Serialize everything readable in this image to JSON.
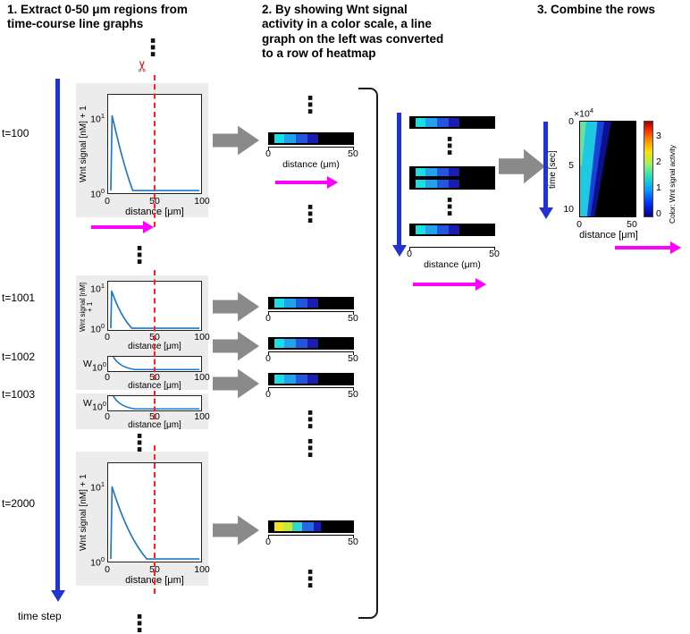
{
  "headings": {
    "step1": "1. Extract 0-50 μm regions from\ntime-course line graphs",
    "step2": "2. By showing Wnt signal\nactivity in a color scale, a line\ngraph on the left was converted\nto a row of heatmap",
    "step3": "3. Combine the rows"
  },
  "colors": {
    "time_arrow": "#2433d0",
    "dist_arrow": "#ff00ff",
    "flow_arrow": "#8a8a8a",
    "cut_line": "#ff2020",
    "curve": "#1f77c8",
    "panel_bg": "#ececec"
  },
  "misc": {
    "dots": "⋮",
    "scissors": "✂"
  },
  "col1": {
    "time_labels": [
      "t=100",
      "t=1001",
      "t=1002",
      "t=1003",
      "t=2000"
    ],
    "time_axis_label": "time step",
    "graph": {
      "ylabel": "Wnt signal [nM] + 1",
      "xlabel": "distance [μm]",
      "ytick_top": {
        "base": "10",
        "exp": "1"
      },
      "ytick_bottom": {
        "base": "10",
        "exp": "0"
      },
      "xticks": [
        "0",
        "50",
        "100"
      ],
      "cropped_ylabel": "W"
    }
  },
  "col2": {
    "axis": {
      "zero": "0",
      "fifty": "50",
      "label": "distance (μm)"
    }
  },
  "col3": {
    "ylabel": "time [sec]",
    "y_exponent": {
      "base": "×10",
      "exp": "4"
    },
    "yticks": [
      "0",
      "5",
      "10"
    ],
    "xticks": [
      "0",
      "50"
    ],
    "xlabel": "distance [μm]",
    "colorbar_label": "Color: Wnt signal activity",
    "colorbar_ticks": [
      "3",
      "2",
      "1",
      "0"
    ]
  },
  "bars": {
    "early": [
      {
        "c": "#000000",
        "w": 7
      },
      {
        "c": "#18dfe4",
        "w": 12
      },
      {
        "c": "#22a2ec",
        "w": 13
      },
      {
        "c": "#2355e0",
        "w": 14
      },
      {
        "c": "#1a1db2",
        "w": 12
      },
      {
        "c": "#000000",
        "w": 42
      }
    ],
    "late": [
      {
        "c": "#000000",
        "w": 7
      },
      {
        "c": "#f2e32a",
        "w": 11
      },
      {
        "c": "#c3e93a",
        "w": 10
      },
      {
        "c": "#2fd9cf",
        "w": 12
      },
      {
        "c": "#2767e6",
        "w": 13
      },
      {
        "c": "#1a1db2",
        "w": 9
      },
      {
        "c": "#000000",
        "w": 38
      }
    ]
  },
  "chart_data": [
    {
      "type": "line",
      "title": "Wnt signal profile snapshot (repeated at t=100, 1001, 1002, 1003, 2000)",
      "xlabel": "distance [μm]",
      "ylabel": "Wnt signal [nM] + 1",
      "xlim": [
        0,
        100
      ],
      "yscale": "log",
      "yticks": [
        1,
        10
      ],
      "x": [
        0,
        3,
        5,
        10,
        15,
        20,
        25,
        30,
        50,
        100
      ],
      "y": [
        1,
        1,
        9,
        5,
        3,
        1.8,
        1.2,
        1,
        1,
        1
      ],
      "annotations": [
        "red dashed cut line at x = 50"
      ]
    },
    {
      "type": "heatmap",
      "title": "Combined heatmap of Wnt signal activity",
      "xlabel": "distance [μm]",
      "ylabel": "time [sec]",
      "xlim": [
        0,
        50
      ],
      "ylim": [
        0,
        100000
      ],
      "colorbar_label": "Color: Wnt signal activity",
      "colorbar_ticks": [
        0,
        1,
        2,
        3
      ],
      "description": "Cyan/blue wedge of high activity near distance 0 that narrows as time increases; remainder black (0)."
    }
  ]
}
